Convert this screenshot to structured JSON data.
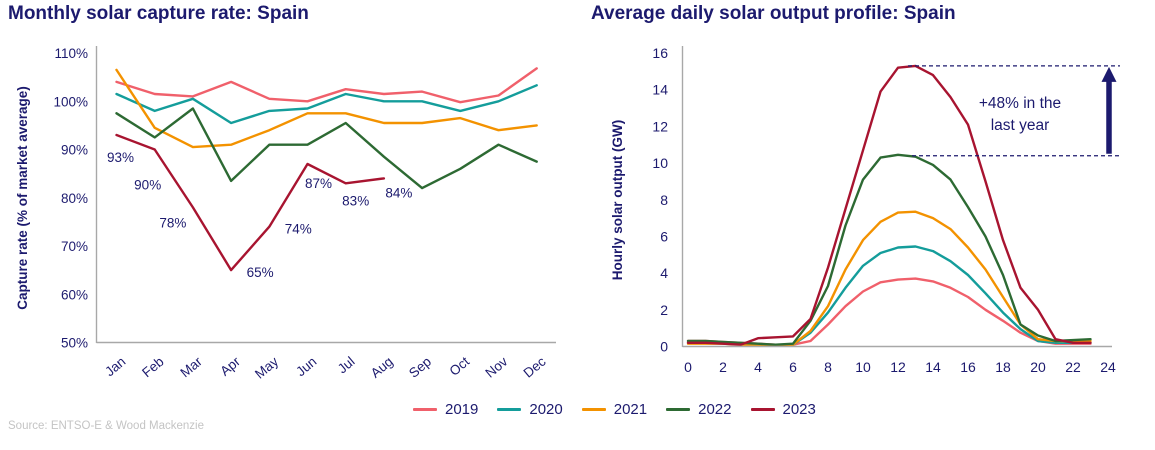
{
  "page": {
    "source": "Source: ENTSO-E & Wood Mackenzie"
  },
  "colors": {
    "navy_text": "#1c1a6e",
    "axis_gray": "#a8a8a8",
    "source_gray": "#c4c4c4",
    "series_2019": "#f0606b",
    "series_2020": "#149d9b",
    "series_2021": "#f39200",
    "series_2022": "#2d6a33",
    "series_2023": "#a81430"
  },
  "legend": {
    "items": [
      {
        "label": "2019",
        "color": "#f0606b"
      },
      {
        "label": "2020",
        "color": "#149d9b"
      },
      {
        "label": "2021",
        "color": "#f39200"
      },
      {
        "label": "2022",
        "color": "#2d6a33"
      },
      {
        "label": "2023",
        "color": "#a81430"
      }
    ]
  },
  "chart_data": [
    {
      "type": "line",
      "title": "Monthly solar capture rate: Spain",
      "ylabel": "Capture rate (% of market average)",
      "xlabel": "",
      "categories": [
        "Jan",
        "Feb",
        "Mar",
        "Apr",
        "May",
        "Jun",
        "Jul",
        "Aug",
        "Sep",
        "Oct",
        "Nov",
        "Dec"
      ],
      "ylim": [
        50,
        110
      ],
      "ytick_step": 10,
      "ytick_suffix": "%",
      "grid": false,
      "series": [
        {
          "name": "2019",
          "color": "#f0606b",
          "values": [
            104,
            101.5,
            101,
            104,
            100.5,
            100,
            102.5,
            101.5,
            102,
            99.8,
            101.2,
            106.8
          ]
        },
        {
          "name": "2020",
          "color": "#149d9b",
          "values": [
            101.5,
            98,
            100.5,
            95.5,
            98,
            98.5,
            101.5,
            100,
            100,
            98,
            100,
            103.3
          ]
        },
        {
          "name": "2021",
          "color": "#f39200",
          "values": [
            106.5,
            94.5,
            90.5,
            91,
            94,
            97.5,
            97.5,
            95.5,
            95.5,
            96.5,
            94,
            95
          ]
        },
        {
          "name": "2022",
          "color": "#2d6a33",
          "values": [
            97.5,
            92.5,
            98.5,
            83.5,
            91,
            91,
            95.5,
            88.5,
            82,
            86,
            91,
            87.5
          ]
        },
        {
          "name": "2023",
          "color": "#a81430",
          "values": [
            93,
            90,
            78,
            65,
            74,
            87,
            83,
            84
          ],
          "point_labels": [
            "93%",
            "90%",
            "78%",
            "65%",
            "74%",
            "87%",
            "83%",
            "84%"
          ]
        }
      ]
    },
    {
      "type": "line",
      "title": "Average daily solar output profile: Spain",
      "ylabel": "Hourly solar output (GW)",
      "xlabel": "",
      "x": [
        0,
        1,
        2,
        3,
        4,
        5,
        6,
        7,
        8,
        9,
        10,
        11,
        12,
        13,
        14,
        15,
        16,
        17,
        18,
        19,
        20,
        21,
        22,
        23
      ],
      "xlim": [
        0,
        24
      ],
      "xtick_step": 2,
      "ylim": [
        0,
        16
      ],
      "ytick_step": 2,
      "grid": false,
      "series": [
        {
          "name": "2019",
          "color": "#f0606b",
          "values": [
            0.3,
            0.3,
            0.25,
            0.2,
            0.15,
            0.1,
            0.1,
            0.3,
            1.2,
            2.2,
            3.0,
            3.5,
            3.65,
            3.7,
            3.55,
            3.2,
            2.7,
            2.0,
            1.4,
            0.75,
            0.3,
            0.15,
            0.15,
            0.15
          ]
        },
        {
          "name": "2020",
          "color": "#149d9b",
          "values": [
            0.2,
            0.2,
            0.2,
            0.15,
            0.1,
            0.1,
            0.1,
            0.75,
            1.85,
            3.2,
            4.4,
            5.1,
            5.4,
            5.45,
            5.2,
            4.65,
            3.9,
            2.9,
            1.85,
            0.95,
            0.3,
            0.2,
            0.2,
            0.2
          ]
        },
        {
          "name": "2021",
          "color": "#f39200",
          "values": [
            0.15,
            0.15,
            0.15,
            0.1,
            0.1,
            0.05,
            0.1,
            0.85,
            2.2,
            4.2,
            5.8,
            6.8,
            7.3,
            7.35,
            7.0,
            6.4,
            5.4,
            4.2,
            2.7,
            1.2,
            0.4,
            0.3,
            0.3,
            0.3
          ]
        },
        {
          "name": "2022",
          "color": "#2d6a33",
          "values": [
            0.3,
            0.3,
            0.25,
            0.2,
            0.15,
            0.1,
            0.15,
            1.4,
            3.3,
            6.6,
            9.1,
            10.3,
            10.45,
            10.35,
            9.9,
            9.1,
            7.6,
            6.0,
            3.9,
            1.2,
            0.6,
            0.3,
            0.35,
            0.4
          ]
        },
        {
          "name": "2023",
          "color": "#a81430",
          "values": [
            0.2,
            0.2,
            0.15,
            0.1,
            0.45,
            0.5,
            0.55,
            1.5,
            4.3,
            7.5,
            10.7,
            13.9,
            15.2,
            15.3,
            14.8,
            13.6,
            12.1,
            9.0,
            5.8,
            3.2,
            2.0,
            0.4,
            0.2,
            0.2
          ]
        }
      ],
      "annotation": {
        "lines": [
          "+48% in the",
          "last year"
        ],
        "upper_dashed_level": 15.3,
        "lower_dashed_level": 10.4,
        "arrow_direction": "up"
      }
    }
  ]
}
